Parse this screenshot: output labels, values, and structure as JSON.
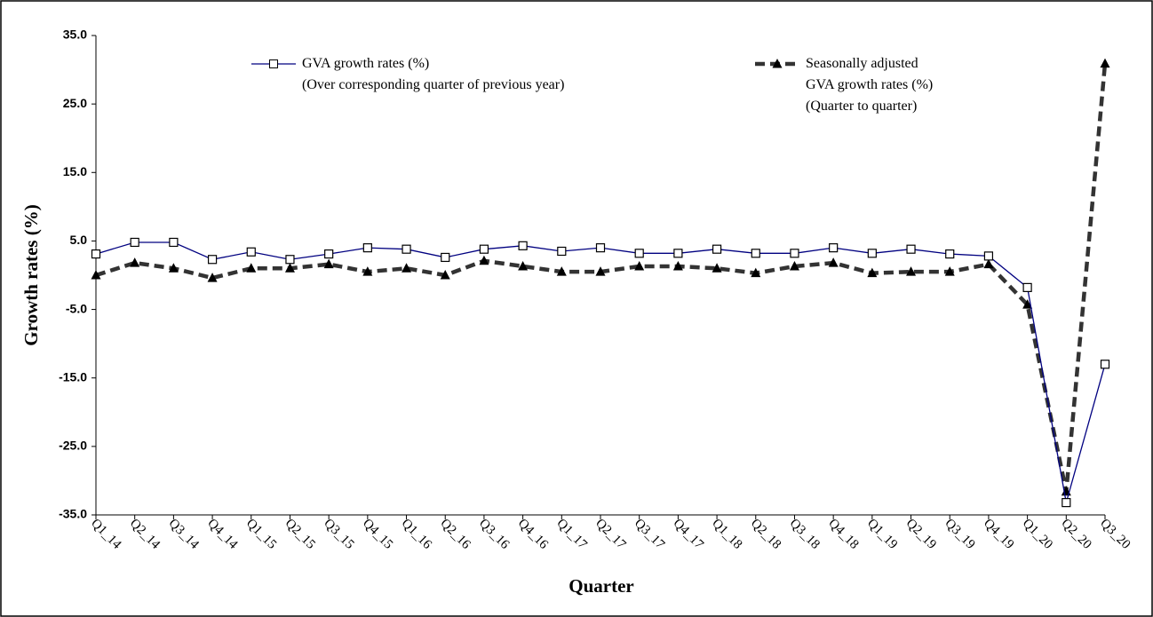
{
  "chart_data": {
    "type": "line",
    "y_label": "Growth rates (%)",
    "x_label": "Quarter",
    "categories": [
      "Q1_14",
      "Q2_14",
      "Q3_14",
      "Q4_14",
      "Q1_15",
      "Q2_15",
      "Q3_15",
      "Q4_15",
      "Q1_16",
      "Q2_16",
      "Q3_16",
      "Q4_16",
      "Q1_17",
      "Q2_17",
      "Q3_17",
      "Q4_17",
      "Q1_18",
      "Q2_18",
      "Q3_18",
      "Q4_18",
      "Q1_19",
      "Q2_19",
      "Q3_19",
      "Q4_19",
      "Q1_20",
      "Q2_20",
      "Q3_20"
    ],
    "series": [
      {
        "name": "GVA growth rates (%)",
        "legend_note": "(Over corresponding quarter of previous year)",
        "color": "#000080",
        "marker": "square",
        "dashed": false,
        "values": [
          3.1,
          4.8,
          4.8,
          2.3,
          3.4,
          2.3,
          3.1,
          4.0,
          3.8,
          2.6,
          3.8,
          4.3,
          3.5,
          4.0,
          3.2,
          3.2,
          3.8,
          3.2,
          3.2,
          4.0,
          3.2,
          3.8,
          3.1,
          2.8,
          -1.8,
          -33.2,
          -13.0
        ]
      },
      {
        "name": "Seasonally adjusted GVA growth rates (%)",
        "legend_note": "(Quarter to quarter)",
        "color": "#333333",
        "marker": "triangle",
        "dashed": true,
        "values": [
          0.0,
          1.8,
          1.0,
          -0.4,
          1.0,
          1.0,
          1.6,
          0.5,
          1.0,
          0.0,
          2.1,
          1.3,
          0.5,
          0.5,
          1.3,
          1.3,
          1.0,
          0.3,
          1.3,
          1.8,
          0.3,
          0.5,
          0.5,
          1.6,
          -4.3,
          -31.6,
          30.9
        ]
      }
    ],
    "ylim": [
      -35,
      35
    ],
    "yticks": [
      {
        "value": -35,
        "label": "-35.0"
      },
      {
        "value": -25,
        "label": "-25.0"
      },
      {
        "value": -15,
        "label": "-15.0"
      },
      {
        "value": -5,
        "label": "-5.0"
      },
      {
        "value": 5,
        "label": "5.0"
      },
      {
        "value": 15,
        "label": "15.0"
      },
      {
        "value": 25,
        "label": "25.0"
      },
      {
        "value": 35,
        "label": "35.0"
      }
    ],
    "grid": false
  }
}
